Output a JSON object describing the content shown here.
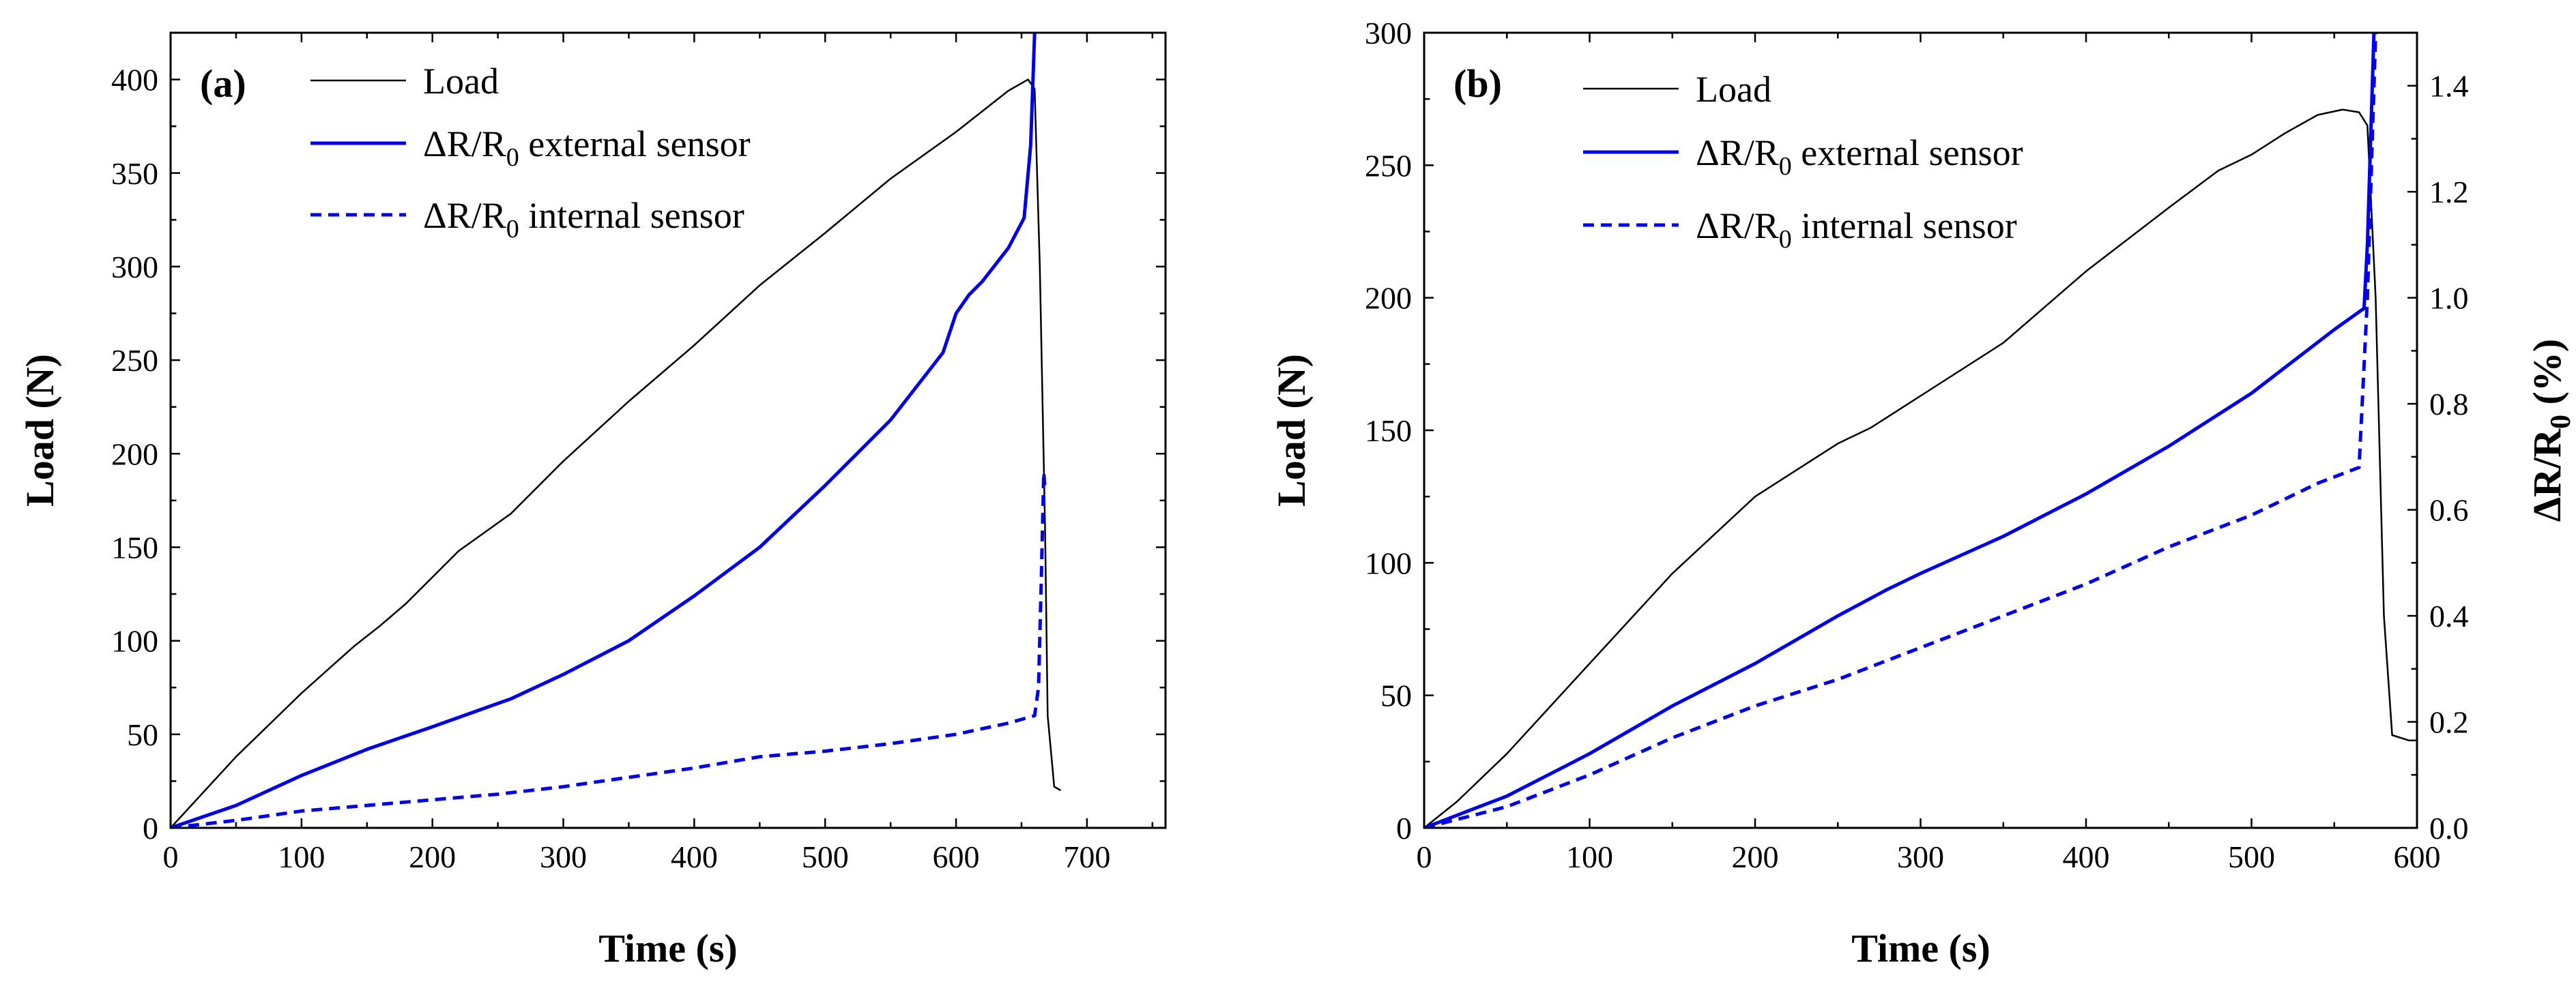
{
  "chart_data": [
    {
      "type": "line",
      "panel_label": "(a)",
      "xlabel": "Time (s)",
      "ylabel": "Load (N)",
      "xlim": [
        0,
        760
      ],
      "ylim": [
        0,
        425
      ],
      "x_ticks": [
        0,
        100,
        200,
        300,
        400,
        500,
        600,
        700
      ],
      "y_ticks": [
        0,
        50,
        100,
        150,
        200,
        250,
        300,
        350,
        400
      ],
      "legend_position": "top-left",
      "series": [
        {
          "name": "Load",
          "color": "#000000",
          "style": "solid",
          "points": [
            [
              0,
              0
            ],
            [
              50,
              38
            ],
            [
              100,
              72
            ],
            [
              140,
              97
            ],
            [
              160,
              108
            ],
            [
              180,
              120
            ],
            [
              220,
              148
            ],
            [
              260,
              168
            ],
            [
              300,
              196
            ],
            [
              350,
              228
            ],
            [
              400,
              258
            ],
            [
              450,
              290
            ],
            [
              500,
              318
            ],
            [
              550,
              347
            ],
            [
              600,
              372
            ],
            [
              640,
              394
            ],
            [
              655,
              400
            ],
            [
              660,
              395
            ],
            [
              664,
              300
            ],
            [
              668,
              160
            ],
            [
              670,
              60
            ],
            [
              675,
              22
            ],
            [
              680,
              20
            ]
          ]
        },
        {
          "name": "ΔR/R0 external sensor",
          "color": "#0000ee",
          "style": "solid",
          "points": [
            [
              0,
              0
            ],
            [
              50,
              12
            ],
            [
              100,
              28
            ],
            [
              150,
              42
            ],
            [
              200,
              54
            ],
            [
              240,
              64
            ],
            [
              260,
              69
            ],
            [
              300,
              82
            ],
            [
              350,
              100
            ],
            [
              400,
              124
            ],
            [
              450,
              150
            ],
            [
              500,
              183
            ],
            [
              550,
              218
            ],
            [
              590,
              254
            ],
            [
              600,
              275
            ],
            [
              610,
              285
            ],
            [
              620,
              292
            ],
            [
              640,
              310
            ],
            [
              652,
              326
            ],
            [
              657,
              365
            ],
            [
              660,
              425
            ]
          ]
        },
        {
          "name": "ΔR/R0 internal sensor",
          "color": "#0000ee",
          "style": "dashed",
          "points": [
            [
              0,
              0
            ],
            [
              50,
              4
            ],
            [
              100,
              9
            ],
            [
              150,
              12
            ],
            [
              200,
              15
            ],
            [
              250,
              18
            ],
            [
              300,
              22
            ],
            [
              350,
              27
            ],
            [
              400,
              32
            ],
            [
              450,
              38
            ],
            [
              500,
              41
            ],
            [
              550,
              45
            ],
            [
              600,
              50
            ],
            [
              640,
              56
            ],
            [
              660,
              60
            ],
            [
              663,
              75
            ],
            [
              665,
              130
            ],
            [
              667,
              190
            ],
            [
              668,
              180
            ]
          ]
        }
      ]
    },
    {
      "type": "line",
      "panel_label": "(b)",
      "xlabel": "Time (s)",
      "ylabel": "Load (N)",
      "y2label": "ΔR/R0 (%)",
      "xlim": [
        0,
        600
      ],
      "ylim": [
        0,
        300
      ],
      "y2lim": [
        0,
        1.5
      ],
      "x_ticks": [
        0,
        100,
        200,
        300,
        400,
        500,
        600
      ],
      "y_ticks": [
        0,
        50,
        100,
        150,
        200,
        250,
        300
      ],
      "y2_ticks": [
        0.0,
        0.2,
        0.4,
        0.6,
        0.8,
        1.0,
        1.2,
        1.4
      ],
      "legend_position": "top-left",
      "series": [
        {
          "name": "Load",
          "color": "#000000",
          "style": "solid",
          "axis": "left",
          "points": [
            [
              0,
              0
            ],
            [
              20,
              10
            ],
            [
              50,
              28
            ],
            [
              100,
              62
            ],
            [
              150,
              96
            ],
            [
              200,
              125
            ],
            [
              250,
              145
            ],
            [
              270,
              151
            ],
            [
              300,
              163
            ],
            [
              350,
              183
            ],
            [
              400,
              210
            ],
            [
              450,
              234
            ],
            [
              480,
              248
            ],
            [
              500,
              254
            ],
            [
              520,
              262
            ],
            [
              540,
              269
            ],
            [
              555,
              271
            ],
            [
              565,
              270
            ],
            [
              570,
              265
            ],
            [
              575,
              200
            ],
            [
              580,
              80
            ],
            [
              585,
              35
            ],
            [
              595,
              33
            ],
            [
              600,
              33
            ]
          ]
        },
        {
          "name": "ΔR/R0 external sensor",
          "color": "#0000ee",
          "style": "solid",
          "axis": "right",
          "points": [
            [
              0,
              0
            ],
            [
              50,
              0.06
            ],
            [
              100,
              0.14
            ],
            [
              150,
              0.23
            ],
            [
              200,
              0.31
            ],
            [
              250,
              0.4
            ],
            [
              280,
              0.45
            ],
            [
              300,
              0.48
            ],
            [
              350,
              0.55
            ],
            [
              400,
              0.63
            ],
            [
              450,
              0.72
            ],
            [
              500,
              0.82
            ],
            [
              550,
              0.94
            ],
            [
              568,
              0.98
            ],
            [
              570,
              1.1
            ],
            [
              572,
              1.3
            ],
            [
              574,
              1.5
            ]
          ]
        },
        {
          "name": "ΔR/R0 internal sensor",
          "color": "#0000ee",
          "style": "dashed",
          "axis": "right",
          "points": [
            [
              0,
              0
            ],
            [
              50,
              0.04
            ],
            [
              100,
              0.1
            ],
            [
              150,
              0.17
            ],
            [
              200,
              0.23
            ],
            [
              250,
              0.28
            ],
            [
              300,
              0.34
            ],
            [
              350,
              0.4
            ],
            [
              400,
              0.46
            ],
            [
              450,
              0.53
            ],
            [
              500,
              0.59
            ],
            [
              540,
              0.65
            ],
            [
              565,
              0.68
            ],
            [
              570,
              1.0
            ],
            [
              573,
              1.3
            ],
            [
              575,
              1.5
            ]
          ]
        }
      ]
    }
  ]
}
